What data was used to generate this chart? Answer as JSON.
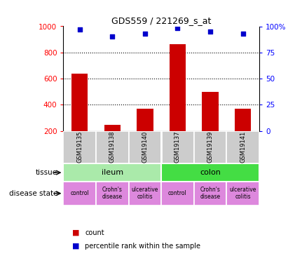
{
  "title": "GDS559 / 221269_s_at",
  "samples": [
    "GSM19135",
    "GSM19138",
    "GSM19140",
    "GSM19137",
    "GSM19139",
    "GSM19141"
  ],
  "bar_values": [
    640,
    248,
    368,
    862,
    496,
    368
  ],
  "percentile_values": [
    97,
    90,
    93,
    98,
    95,
    93
  ],
  "bar_color": "#cc0000",
  "dot_color": "#0000cc",
  "ymin": 200,
  "ymax": 1000,
  "yticks_left": [
    200,
    400,
    600,
    800,
    1000
  ],
  "yticks_right": [
    0,
    25,
    50,
    75,
    100
  ],
  "dotted_lines": [
    400,
    600,
    800
  ],
  "tissue_groups": [
    {
      "label": "ileum",
      "cols": [
        0,
        1,
        2
      ],
      "color": "#aaeaaa"
    },
    {
      "label": "colon",
      "cols": [
        3,
        4,
        5
      ],
      "color": "#44dd44"
    }
  ],
  "disease_groups": [
    {
      "label": "control",
      "cols": [
        0
      ],
      "color": "#dd88dd"
    },
    {
      "label": "Crohn's\ndisease",
      "cols": [
        1
      ],
      "color": "#dd88dd"
    },
    {
      "label": "ulcerative\ncolitis",
      "cols": [
        2
      ],
      "color": "#dd88dd"
    },
    {
      "label": "control",
      "cols": [
        3
      ],
      "color": "#dd88dd"
    },
    {
      "label": "Crohn's\ndisease",
      "cols": [
        4
      ],
      "color": "#dd88dd"
    },
    {
      "label": "ulcerative\ncolitis",
      "cols": [
        5
      ],
      "color": "#dd88dd"
    }
  ],
  "sample_bg_color": "#cccccc",
  "legend_count_label": "count",
  "legend_pct_label": "percentile rank within the sample",
  "tissue_label": "tissue",
  "disease_label": "disease state"
}
